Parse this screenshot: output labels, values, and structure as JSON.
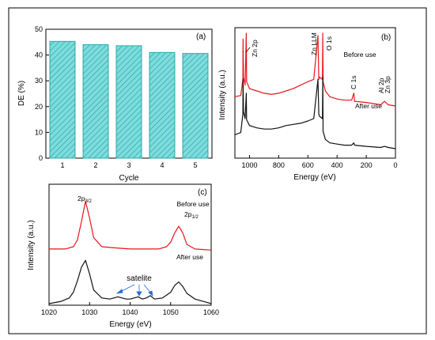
{
  "chart_data": [
    {
      "panel": "(a)",
      "type": "bar",
      "xlabel": "Cycle",
      "ylabel": "DE (%)",
      "categories": [
        "1",
        "2",
        "3",
        "4",
        "5"
      ],
      "values": [
        45.3,
        44.0,
        43.6,
        41.0,
        40.6
      ],
      "ylim": [
        0,
        50
      ],
      "yticks": [
        0,
        10,
        20,
        30,
        40,
        50
      ],
      "colors": {
        "bar": "#7fdcdc",
        "edge": "#2aa8a8"
      }
    },
    {
      "panel": "(b)",
      "type": "line",
      "xlabel": "Energy (eV)",
      "ylabel": "Intensity (a.u.)",
      "xlim": [
        1100,
        0
      ],
      "xticks": [
        1000,
        800,
        600,
        400,
        200,
        0
      ],
      "annotations": [
        "Zn 2p",
        "Zn LLM",
        "O 1s",
        "C 1s",
        "Al 2p",
        "Zn 3p"
      ],
      "series": [
        {
          "name": "Before use",
          "color": "#e8141b",
          "x": [
            1100,
            1060,
            1045,
            1044,
            1041,
            1030,
            1022,
            1020,
            1000,
            950,
            900,
            850,
            800,
            750,
            700,
            650,
            600,
            560,
            531,
            525,
            520,
            500,
            498,
            496,
            480,
            450,
            400,
            350,
            300,
            285,
            280,
            200,
            100,
            75,
            50,
            0
          ],
          "y": [
            0.45,
            0.46,
            0.6,
            0.95,
            0.62,
            0.55,
            1.0,
            0.58,
            0.52,
            0.5,
            0.48,
            0.47,
            0.48,
            0.5,
            0.52,
            0.55,
            0.58,
            0.6,
            0.98,
            0.6,
            0.62,
            0.6,
            1.0,
            0.58,
            0.5,
            0.45,
            0.43,
            0.42,
            0.42,
            0.48,
            0.41,
            0.4,
            0.38,
            0.41,
            0.38,
            0.37
          ]
        },
        {
          "name": "After use",
          "color": "#111111",
          "x": [
            1100,
            1060,
            1045,
            1044,
            1041,
            1030,
            1022,
            1020,
            1000,
            950,
            900,
            850,
            800,
            750,
            700,
            650,
            600,
            560,
            531,
            525,
            520,
            500,
            498,
            496,
            480,
            450,
            400,
            350,
            300,
            285,
            280,
            200,
            100,
            75,
            50,
            0
          ],
          "y": [
            0.12,
            0.14,
            0.3,
            0.6,
            0.32,
            0.26,
            0.48,
            0.25,
            0.2,
            0.18,
            0.17,
            0.17,
            0.18,
            0.2,
            0.21,
            0.22,
            0.24,
            0.26,
            0.6,
            0.3,
            0.28,
            0.26,
            0.62,
            0.15,
            0.08,
            0.05,
            0.04,
            0.03,
            0.03,
            0.05,
            0.03,
            0.02,
            0.01,
            0.02,
            0.01,
            0.0
          ]
        }
      ]
    },
    {
      "panel": "(c)",
      "type": "line",
      "xlabel": "Energy (eV)",
      "ylabel": "Intensity (a.u.)",
      "xlim": [
        1020,
        1060
      ],
      "xticks": [
        1020,
        1030,
        1040,
        1050,
        1060
      ],
      "annotations": [
        "2p3/2",
        "2p1/2",
        "satelite"
      ],
      "series": [
        {
          "name": "Before use",
          "color": "#e8141b",
          "x": [
            1020,
            1024,
            1026,
            1027,
            1028,
            1029,
            1030,
            1031,
            1033,
            1036,
            1040,
            1044,
            1047,
            1049,
            1050,
            1051,
            1052,
            1053,
            1054,
            1056,
            1060
          ],
          "y": [
            0.48,
            0.48,
            0.5,
            0.56,
            0.72,
            0.9,
            0.75,
            0.58,
            0.5,
            0.49,
            0.48,
            0.48,
            0.48,
            0.5,
            0.54,
            0.62,
            0.68,
            0.62,
            0.52,
            0.48,
            0.47
          ]
        },
        {
          "name": "After use",
          "color": "#111111",
          "x": [
            1020,
            1023,
            1025,
            1026,
            1027,
            1028,
            1029,
            1030,
            1031,
            1033,
            1035,
            1037,
            1039,
            1040,
            1042,
            1043,
            1044,
            1045,
            1046,
            1048,
            1050,
            1051,
            1052,
            1053,
            1054,
            1056,
            1058,
            1060
          ],
          "y": [
            0.0,
            0.02,
            0.05,
            0.1,
            0.2,
            0.32,
            0.38,
            0.26,
            0.12,
            0.05,
            0.04,
            0.06,
            0.04,
            0.04,
            0.06,
            0.04,
            0.05,
            0.07,
            0.04,
            0.05,
            0.1,
            0.16,
            0.19,
            0.15,
            0.09,
            0.04,
            0.02,
            0.0
          ]
        }
      ]
    }
  ],
  "text": {
    "panel_a": "(a)",
    "panel_b": "(b)",
    "panel_c": "(c)",
    "a_ylabel": "DE (%)",
    "a_xlabel": "Cycle",
    "b_xlabel": "Energy (eV)",
    "b_ylabel": "Intensity (a.u.)",
    "c_xlabel": "Energy (eV)",
    "c_ylabel": "Intensity (a.u.)",
    "b_before": "Before use",
    "b_after": "After use",
    "c_before": "Before use",
    "c_after": "After use",
    "zn2p": "Zn 2p",
    "znllm": "Zn LLM",
    "o1s": "O 1s",
    "c1s": "C 1s",
    "al2p": "Al 2p",
    "zn3p": "Zn 3p",
    "p32_main": "2p",
    "p32_sub": "3/2",
    "p12_main": "2p",
    "p12_sub": "1/2",
    "satelite": "satelite"
  }
}
